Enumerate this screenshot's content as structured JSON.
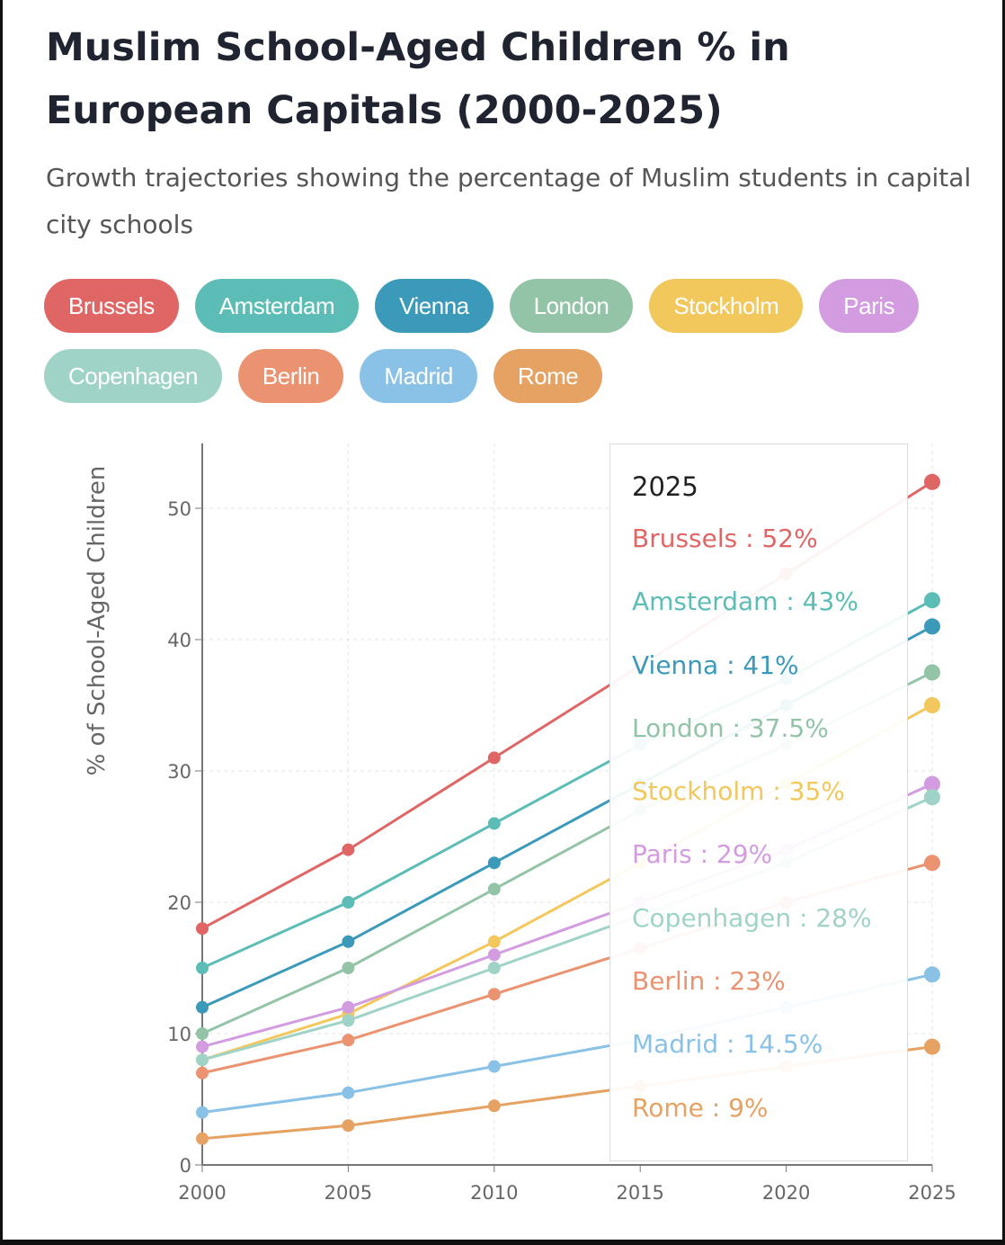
{
  "title": "Muslim School-Aged Children % in European Capitals (2000-2025)",
  "subtitle": "Growth trajectories showing the percentage of Muslim students in capital city schools",
  "chart_data": {
    "type": "line",
    "title": "Muslim School-Aged Children % in European Capitals (2000-2025)",
    "xlabel": "",
    "ylabel": "% of School-Aged Children",
    "x": [
      2000,
      2005,
      2010,
      2015,
      2020,
      2025
    ],
    "xticks": [
      "2000",
      "2005",
      "2010",
      "2015",
      "2020",
      "2025"
    ],
    "yticks": [
      "0",
      "10",
      "20",
      "30",
      "40",
      "50"
    ],
    "ylim": [
      0,
      55
    ],
    "xlim": [
      2000,
      2025
    ],
    "grid": true,
    "legend": "top",
    "series": [
      {
        "name": "Brussels",
        "color": "#e06666",
        "values": [
          18,
          24,
          31,
          38,
          45,
          52
        ]
      },
      {
        "name": "Amsterdam",
        "color": "#5bbdb5",
        "values": [
          15,
          20,
          26,
          32,
          37,
          43
        ]
      },
      {
        "name": "Vienna",
        "color": "#3b9ab9",
        "values": [
          12,
          17,
          23,
          29,
          35,
          41
        ]
      },
      {
        "name": "London",
        "color": "#93c4a8",
        "values": [
          10,
          15,
          21,
          27,
          32,
          37.5
        ]
      },
      {
        "name": "Stockholm",
        "color": "#f2c75c",
        "values": [
          8,
          11.5,
          17,
          23,
          29,
          35
        ]
      },
      {
        "name": "Paris",
        "color": "#d39be0",
        "values": [
          9,
          12,
          16,
          20,
          24,
          29
        ]
      },
      {
        "name": "Copenhagen",
        "color": "#9fd3c7",
        "values": [
          8,
          11,
          15,
          19,
          23,
          28
        ]
      },
      {
        "name": "Berlin",
        "color": "#eb9270",
        "values": [
          7,
          9.5,
          13,
          16.5,
          20,
          23
        ]
      },
      {
        "name": "Madrid",
        "color": "#89c2e6",
        "values": [
          4,
          5.5,
          7.5,
          9.5,
          12,
          14.5
        ]
      },
      {
        "name": "Rome",
        "color": "#e6a262",
        "values": [
          2,
          3,
          4.5,
          6,
          7.5,
          9
        ]
      }
    ],
    "tooltip": {
      "title": "2025",
      "rows": [
        "Brussels : 52%",
        "Amsterdam : 43%",
        "Vienna : 41%",
        "London : 37.5%",
        "Stockholm : 35%",
        "Paris : 29%",
        "Copenhagen : 28%",
        "Berlin : 23%",
        "Madrid : 14.5%",
        "Rome : 9%"
      ]
    }
  }
}
